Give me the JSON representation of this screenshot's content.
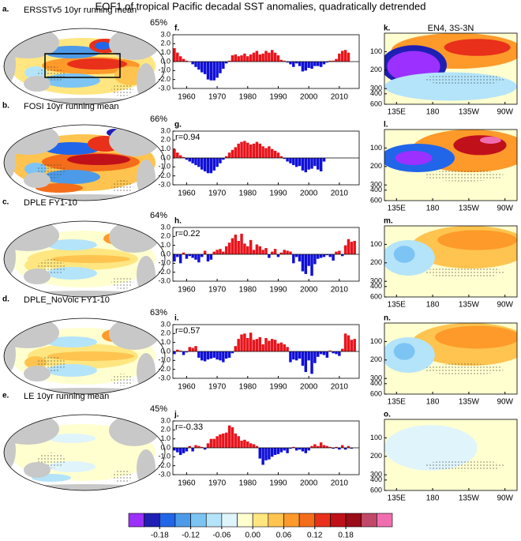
{
  "figure_title": "EOF1 of tropical Pacific decadal SST anomalies, quadratically detrended",
  "chart_data": [
    {
      "type": "map",
      "label": "a.",
      "title": "ERSSTv5 10yr running mean",
      "explained_variance": "65%"
    },
    {
      "type": "map",
      "label": "b.",
      "title": "FOSI 10yr running mean",
      "explained_variance": "66%"
    },
    {
      "type": "map",
      "label": "c.",
      "title": "DPLE FY1-10",
      "explained_variance": "64%"
    },
    {
      "type": "map",
      "label": "d.",
      "title": "DPLE_NoVolc FY1-10",
      "explained_variance": "63%"
    },
    {
      "type": "map",
      "label": "e.",
      "title": "LE 10yr running mean",
      "explained_variance": "45%"
    },
    {
      "type": "bar",
      "label": "f.",
      "pos_color": "#e8141c",
      "neg_color": "#1010d8",
      "x": [
        1956,
        1957,
        1958,
        1959,
        1960,
        1961,
        1962,
        1963,
        1964,
        1965,
        1966,
        1967,
        1968,
        1969,
        1970,
        1971,
        1972,
        1973,
        1974,
        1975,
        1976,
        1977,
        1978,
        1979,
        1980,
        1981,
        1982,
        1983,
        1984,
        1985,
        1986,
        1987,
        1988,
        1989,
        1990,
        1991,
        1992,
        1993,
        1994,
        1995,
        1996,
        1997,
        1998,
        1999,
        2000,
        2001,
        2002,
        2003,
        2004,
        2005,
        2006,
        2007,
        2008,
        2009,
        2010,
        2011,
        2012,
        2013,
        2014,
        2015
      ],
      "values": [
        1.5,
        1.0,
        0.6,
        0.3,
        0.1,
        0,
        -0.3,
        -0.6,
        -0.9,
        -1.2,
        -1.4,
        -2.0,
        -2.1,
        -2.1,
        -1.8,
        -1.3,
        -0.8,
        -0.2,
        0.1,
        0.7,
        0.8,
        0.6,
        0.7,
        0.9,
        0.6,
        0.8,
        1.0,
        1.2,
        0.8,
        0.9,
        1.2,
        1.0,
        1.3,
        1.0,
        0.7,
        0.2,
        0.1,
        -0.1,
        -0.3,
        -0.6,
        -0.2,
        -0.5,
        -1.1,
        -1.0,
        -0.7,
        -0.8,
        -0.5,
        -0.5,
        -0.6,
        -0.3,
        -0.1,
        0.1,
        0.1,
        0.3,
        0.9,
        1.2,
        1.3,
        1.0,
        null,
        null
      ],
      "xlim": [
        1955.5,
        2016.5
      ],
      "xticks": [
        1960,
        1970,
        1980,
        1990,
        2000,
        2010
      ],
      "ylim": [
        -3,
        3
      ],
      "yticks": [
        {
          "value": 3,
          "label": "3.0"
        },
        {
          "value": 2,
          "label": "2.0"
        },
        {
          "value": 1,
          "label": "1.0"
        },
        {
          "value": 0,
          "label": "0.0"
        },
        {
          "value": -1,
          "label": "-1.0"
        },
        {
          "value": -2,
          "label": "-2.0"
        },
        {
          "value": -3,
          "label": "-3.0"
        }
      ]
    },
    {
      "type": "bar",
      "label": "g.",
      "annotation": "r=0.94",
      "pos_color": "#e8141c",
      "neg_color": "#1010d8",
      "x": [
        1956,
        1957,
        1958,
        1959,
        1960,
        1961,
        1962,
        1963,
        1964,
        1965,
        1966,
        1967,
        1968,
        1969,
        1970,
        1971,
        1972,
        1973,
        1974,
        1975,
        1976,
        1977,
        1978,
        1979,
        1980,
        1981,
        1982,
        1983,
        1984,
        1985,
        1986,
        1987,
        1988,
        1989,
        1990,
        1991,
        1992,
        1993,
        1994,
        1995,
        1996,
        1997,
        1998,
        1999,
        2000,
        2001,
        2002,
        2003,
        2004,
        2005,
        2006,
        2007,
        2008,
        2009,
        2010,
        2011,
        2012,
        2013,
        2014,
        2015
      ],
      "values": [
        1.0,
        0.6,
        0.3,
        0.1,
        -0.2,
        -0.4,
        -0.6,
        -0.8,
        -1.0,
        -1.3,
        -1.5,
        -1.7,
        -1.7,
        -1.4,
        -1.0,
        -0.6,
        -0.2,
        0.2,
        0.6,
        0.9,
        1.2,
        1.6,
        1.8,
        1.9,
        1.7,
        1.5,
        1.6,
        1.8,
        1.6,
        1.3,
        1.1,
        1.3,
        1.0,
        0.8,
        0.6,
        0.2,
        -0.1,
        -0.4,
        -0.6,
        -0.8,
        -1.0,
        -0.9,
        -1.4,
        -1.6,
        -1.3,
        -1.2,
        -0.9,
        -1.3,
        -1.5,
        -0.4,
        null,
        null,
        null,
        null,
        null,
        null,
        null,
        null,
        null,
        null
      ],
      "xlim": [
        1955.5,
        2016.5
      ],
      "xticks": [
        1960,
        1970,
        1980,
        1990,
        2000,
        2010
      ],
      "ylim": [
        -3,
        3
      ],
      "yticks": [
        {
          "value": 3,
          "label": "3.0"
        },
        {
          "value": 2,
          "label": "2.0"
        },
        {
          "value": 1,
          "label": "1.0"
        },
        {
          "value": 0,
          "label": "0.0"
        },
        {
          "value": -1,
          "label": "-1.0"
        },
        {
          "value": -2,
          "label": "-2.0"
        },
        {
          "value": -3,
          "label": "-3.0"
        }
      ]
    },
    {
      "type": "bar",
      "label": "h.",
      "annotation": "r=0.22",
      "pos_color": "#e8141c",
      "neg_color": "#1010d8",
      "x": [
        1956,
        1957,
        1958,
        1959,
        1960,
        1961,
        1962,
        1963,
        1964,
        1965,
        1966,
        1967,
        1968,
        1969,
        1970,
        1971,
        1972,
        1973,
        1974,
        1975,
        1976,
        1977,
        1978,
        1979,
        1980,
        1981,
        1982,
        1983,
        1984,
        1985,
        1986,
        1987,
        1988,
        1989,
        1990,
        1991,
        1992,
        1993,
        1994,
        1995,
        1996,
        1997,
        1998,
        1999,
        2000,
        2001,
        2002,
        2003,
        2004,
        2005,
        2006,
        2007,
        2008,
        2009,
        2010,
        2011,
        2012,
        2013,
        2014,
        2015
      ],
      "values": [
        -0.8,
        -0.3,
        -1.0,
        0.2,
        -0.5,
        -0.2,
        -0.4,
        -0.6,
        -0.9,
        -0.3,
        0.4,
        -0.8,
        -0.6,
        0.3,
        0.5,
        0.6,
        0.3,
        0.9,
        1.3,
        1.8,
        2.2,
        1.5,
        2.3,
        1.2,
        0.9,
        1.6,
        0.5,
        1.1,
        0.9,
        0.5,
        0.7,
        -0.4,
        0.3,
        0.6,
        -0.3,
        0.2,
        0.5,
        0.4,
        0.3,
        -1.0,
        -0.3,
        -0.8,
        -1.9,
        -2.2,
        -1.3,
        -2.4,
        -1.1,
        -0.5,
        -0.4,
        -0.3,
        -0.1,
        -0.3,
        -0.7,
        0.3,
        0.4,
        -0.2,
        1.0,
        1.7,
        1.4,
        1.5
      ],
      "xlim": [
        1955.5,
        2016.5
      ],
      "xticks": [
        1960,
        1970,
        1980,
        1990,
        2000,
        2010
      ],
      "ylim": [
        -3,
        3
      ],
      "yticks": [
        {
          "value": 3,
          "label": "3.0"
        },
        {
          "value": 2,
          "label": "2.0"
        },
        {
          "value": 1,
          "label": "1.0"
        },
        {
          "value": 0,
          "label": "0.0"
        },
        {
          "value": -1,
          "label": "-1.0"
        },
        {
          "value": -2,
          "label": "-2.0"
        },
        {
          "value": -3,
          "label": "-3.0"
        }
      ]
    },
    {
      "type": "bar",
      "label": "i.",
      "annotation": "r=0.57",
      "pos_color": "#e8141c",
      "neg_color": "#1010d8",
      "x": [
        1956,
        1957,
        1958,
        1959,
        1960,
        1961,
        1962,
        1963,
        1964,
        1965,
        1966,
        1967,
        1968,
        1969,
        1970,
        1971,
        1972,
        1973,
        1974,
        1975,
        1976,
        1977,
        1978,
        1979,
        1980,
        1981,
        1982,
        1983,
        1984,
        1985,
        1986,
        1987,
        1988,
        1989,
        1990,
        1991,
        1992,
        1993,
        1994,
        1995,
        1996,
        1997,
        1998,
        1999,
        2000,
        2001,
        2002,
        2003,
        2004,
        2005,
        2006,
        2007,
        2008,
        2009,
        2010,
        2011,
        2012,
        2013,
        2014,
        2015
      ],
      "values": [
        -0.3,
        0.2,
        0.1,
        -0.4,
        -0.1,
        0.5,
        0.4,
        0.6,
        -0.7,
        -1.0,
        -1.1,
        -0.9,
        -0.8,
        -0.7,
        -0.9,
        -1.0,
        -1.2,
        -0.8,
        -0.7,
        -0.2,
        0.6,
        1.4,
        1.9,
        2.0,
        1.5,
        2.1,
        1.3,
        1.4,
        1.6,
        0.8,
        1.5,
        1.2,
        1.4,
        1.3,
        0.9,
        1.0,
        0.8,
        0.5,
        -1.2,
        -0.9,
        -1.0,
        -0.8,
        -1.6,
        -2.3,
        -1.0,
        -2.5,
        -1.3,
        -0.6,
        -0.3,
        -0.4,
        -0.7,
        0.1,
        -0.2,
        -0.3,
        -0.5,
        0.3,
        2.0,
        1.8,
        1.3,
        1.4
      ],
      "xlim": [
        1955.5,
        2016.5
      ],
      "xticks": [
        1960,
        1970,
        1980,
        1990,
        2000,
        2010
      ],
      "ylim": [
        -3,
        3
      ],
      "yticks": [
        {
          "value": 3,
          "label": "3.0"
        },
        {
          "value": 2,
          "label": "2.0"
        },
        {
          "value": 1,
          "label": "1.0"
        },
        {
          "value": 0,
          "label": "0.0"
        },
        {
          "value": -1,
          "label": "-1.0"
        },
        {
          "value": -2,
          "label": "-2.0"
        },
        {
          "value": -3,
          "label": "-3.0"
        }
      ]
    },
    {
      "type": "bar",
      "label": "j.",
      "annotation": "r=-0.33",
      "pos_color": "#e8141c",
      "neg_color": "#1010d8",
      "x": [
        1956,
        1957,
        1958,
        1959,
        1960,
        1961,
        1962,
        1963,
        1964,
        1965,
        1966,
        1967,
        1968,
        1969,
        1970,
        1971,
        1972,
        1973,
        1974,
        1975,
        1976,
        1977,
        1978,
        1979,
        1980,
        1981,
        1982,
        1983,
        1984,
        1985,
        1986,
        1987,
        1988,
        1989,
        1990,
        1991,
        1992,
        1993,
        1994,
        1995,
        1996,
        1997,
        1998,
        1999,
        2000,
        2001,
        2002,
        2003,
        2004,
        2005,
        2006,
        2007,
        2008,
        2009,
        2010,
        2011,
        2012,
        2013,
        2014,
        2015
      ],
      "values": [
        -0.3,
        -0.5,
        -0.8,
        -0.6,
        -0.4,
        0.2,
        -0.4,
        0.3,
        0.2,
        0.1,
        -0.2,
        0.5,
        1.0,
        1.0,
        1.3,
        1.5,
        1.6,
        1.7,
        2.5,
        2.3,
        1.6,
        1.3,
        0.8,
        0.9,
        0.7,
        0.5,
        0.4,
        0.2,
        -1.2,
        -1.9,
        -1.4,
        -1.3,
        -1.0,
        -0.8,
        -0.7,
        -0.5,
        -0.3,
        -0.6,
        -0.1,
        0.1,
        -0.3,
        -0.2,
        -0.4,
        -0.6,
        -0.3,
        0.2,
        0.4,
        0.2,
        0.6,
        0.3,
        0.2,
        0.1,
        -0.1,
        0.1,
        -0.2,
        0.3,
        -0.2,
        0.2,
        -0.1,
        null
      ],
      "xlim": [
        1955.5,
        2016.5
      ],
      "xticks": [
        1960,
        1970,
        1980,
        1990,
        2000,
        2010
      ],
      "ylim": [
        -3,
        3
      ],
      "yticks": [
        {
          "value": 3,
          "label": "3.0"
        },
        {
          "value": 2,
          "label": "2.0"
        },
        {
          "value": 1,
          "label": "1.0"
        },
        {
          "value": 0,
          "label": "0.0"
        },
        {
          "value": -1,
          "label": "-1.0"
        },
        {
          "value": -2,
          "label": "-2.0"
        },
        {
          "value": -3,
          "label": "-3.0"
        }
      ]
    },
    {
      "type": "section",
      "label": "k.",
      "title": "EN4, 3S-3N",
      "xlim": [
        120,
        285
      ],
      "xticks": [
        {
          "value": 135,
          "label": "135E"
        },
        180,
        {
          "value": 225,
          "label": "135W"
        },
        {
          "value": 270,
          "label": "90W"
        }
      ],
      "ylim": [
        0,
        600
      ],
      "yticks": [
        100,
        200,
        300,
        400,
        600
      ]
    },
    {
      "type": "section",
      "label": "l.",
      "xlim": [
        120,
        285
      ],
      "xticks": [
        {
          "value": 135,
          "label": "135E"
        },
        180,
        {
          "value": 225,
          "label": "135W"
        },
        {
          "value": 270,
          "label": "90W"
        }
      ],
      "ylim": [
        0,
        600
      ],
      "yticks": [
        100,
        200,
        300,
        400,
        600
      ]
    },
    {
      "type": "section",
      "label": "m.",
      "xlim": [
        120,
        285
      ],
      "xticks": [
        {
          "value": 135,
          "label": "135E"
        },
        180,
        {
          "value": 225,
          "label": "135W"
        },
        {
          "value": 270,
          "label": "90W"
        }
      ],
      "ylim": [
        0,
        600
      ],
      "yticks": [
        100,
        200,
        300,
        400,
        600
      ]
    },
    {
      "type": "section",
      "label": "n.",
      "xlim": [
        120,
        285
      ],
      "xticks": [
        {
          "value": 135,
          "label": "135E"
        },
        180,
        {
          "value": 225,
          "label": "135W"
        },
        {
          "value": 270,
          "label": "90W"
        }
      ],
      "ylim": [
        0,
        600
      ],
      "yticks": [
        100,
        200,
        300,
        400,
        600
      ]
    },
    {
      "type": "section",
      "label": "o.",
      "xlim": [
        120,
        285
      ],
      "xticks": [
        {
          "value": 135,
          "label": "135E"
        },
        180,
        {
          "value": 225,
          "label": "135W"
        },
        {
          "value": 270,
          "label": "90W"
        }
      ],
      "ylim": [
        0,
        600
      ],
      "yticks": [
        100,
        200,
        300,
        400,
        600
      ]
    },
    {
      "type": "colorbar",
      "xlim": [
        -0.24,
        0.27
      ],
      "colors": [
        "#9b30ff",
        "#1f1fb4",
        "#2166e8",
        "#4d9be8",
        "#7cc4f4",
        "#b4e4fa",
        "#e0f4fb",
        "#ffffd0",
        "#ffe680",
        "#fec44f",
        "#fd9a2a",
        "#f46d1b",
        "#e8301b",
        "#c0101a",
        "#9a0c18",
        "#c04868",
        "#f06eb0"
      ],
      "xticks": [
        -0.18,
        -0.12,
        -0.06,
        {
          "value": 0,
          "label": "0.00"
        },
        0.06,
        0.12,
        0.18
      ]
    }
  ]
}
